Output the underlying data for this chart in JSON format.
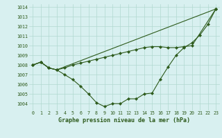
{
  "x_full": [
    0,
    1,
    2,
    3,
    4,
    5,
    6,
    7,
    8,
    9,
    10,
    11,
    12,
    13,
    14,
    15,
    16,
    17,
    18,
    19,
    20,
    21,
    22,
    23
  ],
  "line1": [
    1008.0,
    1008.3,
    1007.7,
    1007.5,
    1007.0,
    1006.5,
    1005.8,
    1005.0,
    1004.1,
    1003.7,
    1004.0,
    1004.0,
    1004.5,
    1004.5,
    1005.0,
    1005.1,
    1006.5,
    1007.8,
    1009.0,
    1009.8,
    1010.3,
    1011.1,
    1012.2,
    1013.8
  ],
  "line2_x": [
    0,
    1,
    2,
    3,
    23
  ],
  "line2_y": [
    1008.0,
    1008.3,
    1007.7,
    1007.5,
    1013.8
  ],
  "line3_x": [
    0,
    1,
    2,
    3,
    4,
    5,
    6,
    7,
    8,
    9,
    10,
    11,
    12,
    13,
    14,
    15,
    16,
    17,
    18,
    19,
    20,
    23
  ],
  "line3_y": [
    1008.0,
    1008.3,
    1007.7,
    1007.5,
    1007.7,
    1008.0,
    1008.2,
    1008.4,
    1008.6,
    1008.8,
    1009.0,
    1009.2,
    1009.4,
    1009.6,
    1009.8,
    1009.9,
    1009.9,
    1009.8,
    1009.8,
    1009.9,
    1010.0,
    1013.8
  ],
  "line_color": "#2d5a1b",
  "bg_color": "#d8f0f0",
  "grid_color": "#b0d8d0",
  "xlabel": "Graphe pression niveau de la mer (hPa)",
  "ylim": [
    1003.3,
    1014.3
  ],
  "yticks": [
    1004,
    1005,
    1006,
    1007,
    1008,
    1009,
    1010,
    1011,
    1012,
    1013,
    1014
  ],
  "xlim": [
    -0.5,
    23.5
  ],
  "xticks": [
    0,
    1,
    2,
    3,
    4,
    5,
    6,
    7,
    8,
    9,
    10,
    11,
    12,
    13,
    14,
    15,
    16,
    17,
    18,
    19,
    20,
    21,
    22,
    23
  ]
}
